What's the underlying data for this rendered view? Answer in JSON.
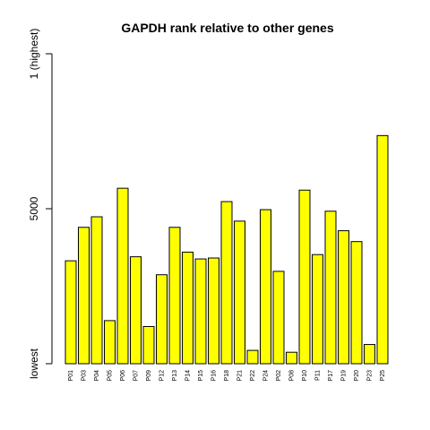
{
  "chart_data": {
    "type": "bar",
    "title": "GAPDH rank relative to other genes",
    "xlabel": "",
    "ylabel": "",
    "bar_color": "#ffff00",
    "y_ticks": [
      {
        "value": 0,
        "label": "lowest"
      },
      {
        "value": 5000,
        "label": "5000"
      },
      {
        "value": 10000,
        "label": "1 (highest)"
      }
    ],
    "ylim": [
      0,
      10000
    ],
    "categories": [
      "P01",
      "P03",
      "P04",
      "P05",
      "P06",
      "P07",
      "P09",
      "P12",
      "P13",
      "P14",
      "P15",
      "P16",
      "P18",
      "P21",
      "P22",
      "P24",
      "P02",
      "P08",
      "P10",
      "P11",
      "P17",
      "P19",
      "P20",
      "P23",
      "P25"
    ],
    "values": [
      3320,
      4400,
      4740,
      1390,
      5660,
      3450,
      1200,
      2870,
      4400,
      3600,
      3380,
      3410,
      5230,
      4600,
      430,
      4970,
      2980,
      370,
      5600,
      3520,
      4920,
      4290,
      3940,
      620,
      7360
    ]
  }
}
